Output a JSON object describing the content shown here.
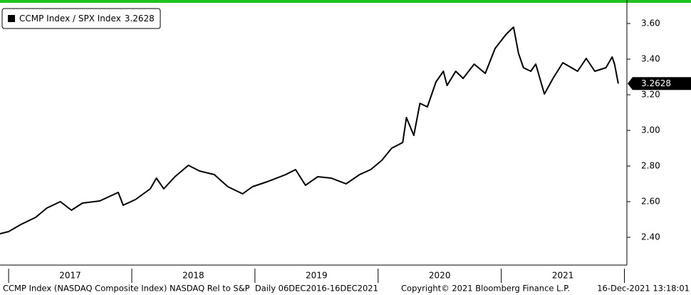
{
  "chart_data": {
    "type": "line",
    "series": [
      {
        "name": "CCMP Index / SPX Index",
        "color": "#000000",
        "x": [
          2016.93,
          2017.0,
          2017.1,
          2017.22,
          2017.31,
          2017.42,
          2017.51,
          2017.6,
          2017.74,
          2017.89,
          2017.93,
          2018.03,
          2018.15,
          2018.2,
          2018.26,
          2018.35,
          2018.46,
          2018.55,
          2018.67,
          2018.78,
          2018.9,
          2018.98,
          2019.1,
          2019.25,
          2019.33,
          2019.41,
          2019.51,
          2019.62,
          2019.74,
          2019.85,
          2019.94,
          2020.03,
          2020.11,
          2020.2,
          2020.23,
          2020.29,
          2020.34,
          2020.4,
          2020.47,
          2020.53,
          2020.56,
          2020.63,
          2020.69,
          2020.78,
          2020.87,
          2020.95,
          2021.04,
          2021.1,
          2021.14,
          2021.18,
          2021.24,
          2021.28,
          2021.35,
          2021.42,
          2021.5,
          2021.62,
          2021.69,
          2021.76,
          2021.85,
          2021.9,
          2021.92,
          2021.95
        ],
        "values": [
          2.42,
          2.432,
          2.472,
          2.512,
          2.564,
          2.6,
          2.552,
          2.592,
          2.604,
          2.652,
          2.58,
          2.612,
          2.672,
          2.732,
          2.672,
          2.74,
          2.804,
          2.772,
          2.752,
          2.684,
          2.644,
          2.684,
          2.712,
          2.752,
          2.78,
          2.692,
          2.74,
          2.732,
          2.7,
          2.752,
          2.78,
          2.832,
          2.9,
          2.932,
          3.072,
          2.972,
          3.152,
          3.132,
          3.272,
          3.332,
          3.252,
          3.332,
          3.292,
          3.372,
          3.32,
          3.46,
          3.54,
          3.58,
          3.432,
          3.352,
          3.332,
          3.372,
          3.204,
          3.292,
          3.38,
          3.332,
          3.404,
          3.332,
          3.352,
          3.412,
          3.372,
          3.2628
        ]
      }
    ],
    "xlim": [
      2016.93,
      2022.02
    ],
    "xticks": [
      2017,
      2018,
      2019,
      2020,
      2021,
      2022
    ],
    "year_labels": [
      "2017",
      "2018",
      "2019",
      "2020",
      "2021"
    ],
    "ylim": [
      2.25,
      3.7
    ],
    "yticks": [
      {
        "value": 2.4,
        "label": "2.40"
      },
      {
        "value": 2.6,
        "label": "2.60"
      },
      {
        "value": 2.8,
        "label": "2.80"
      },
      {
        "value": 3.0,
        "label": "3.00"
      },
      {
        "value": 3.2,
        "label": "3.20"
      },
      {
        "value": 3.4,
        "label": "3.40"
      },
      {
        "value": 3.6,
        "label": "3.60"
      }
    ],
    "grid": false,
    "legend": "top-left",
    "footer": [
      "CCMP Index (NASDAQ Composite Index) NASDAQ Rel to S&P  Daily 06DEC2016-16DEC2021",
      "Copyright© 2021 Bloomberg Finance L.P.",
      "16-Dec-2021 13:18:01"
    ]
  }
}
